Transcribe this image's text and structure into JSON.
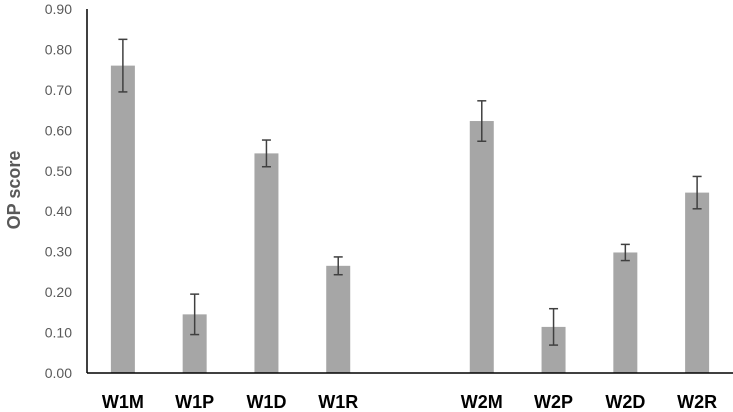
{
  "chart_data": {
    "type": "bar",
    "title": "",
    "xlabel": "",
    "ylabel": "OP score",
    "ylim": [
      0,
      0.9
    ],
    "ytick_step": 0.1,
    "yticks": [
      "0.00",
      "0.10",
      "0.20",
      "0.30",
      "0.40",
      "0.50",
      "0.60",
      "0.70",
      "0.80",
      "0.90"
    ],
    "grid": false,
    "legend": "none",
    "bar_color": "#a6a6a6",
    "error_bar_color": "#404040",
    "categories": [
      "W1M",
      "W1P",
      "W1D",
      "W1R",
      "",
      "W2M",
      "W2P",
      "W2D",
      "W2R"
    ],
    "series": [
      {
        "values": [
          0.76,
          0.145,
          0.543,
          0.265,
          null,
          0.623,
          0.114,
          0.298,
          0.446
        ],
        "error": [
          0.065,
          0.05,
          0.033,
          0.022,
          null,
          0.05,
          0.045,
          0.02,
          0.04
        ]
      }
    ]
  }
}
